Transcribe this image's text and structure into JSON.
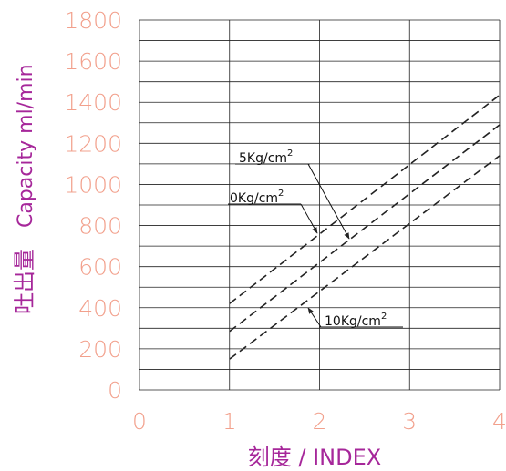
{
  "chart_data": {
    "type": "line",
    "ylabel_zh": "吐出量",
    "ylabel_en": "Capacity ml/min",
    "xlabel": "刻度 / INDEX",
    "xlim": [
      0,
      4
    ],
    "ylim": [
      0,
      1800
    ],
    "x_ticks": [
      "0",
      "1",
      "2",
      "3",
      "4"
    ],
    "y_ticks": [
      "0",
      "200",
      "400",
      "600",
      "800",
      "1000",
      "1200",
      "1400",
      "1600",
      "1800"
    ],
    "grid": true,
    "series": [
      {
        "name": "5Kg/cm2",
        "x": [
          1,
          4
        ],
        "y": [
          420,
          1435
        ]
      },
      {
        "name": "0Kg/cm2",
        "x": [
          1,
          4
        ],
        "y": [
          285,
          1290
        ]
      },
      {
        "name": "10Kg/cm2",
        "x": [
          1,
          4
        ],
        "y": [
          150,
          1140
        ]
      }
    ],
    "annotations": [
      {
        "text": "5Kg/cm",
        "sup": "2",
        "series": "5Kg/cm2"
      },
      {
        "text": "0Kg/cm",
        "sup": "2",
        "series": "0Kg/cm2"
      },
      {
        "text": "10Kg/cm",
        "sup": "2",
        "series": "10Kg/cm2"
      }
    ],
    "colors": {
      "tick": "#f2a08c",
      "axis_label": "#a6279a",
      "grid": "#222222",
      "line": "#222222"
    }
  }
}
